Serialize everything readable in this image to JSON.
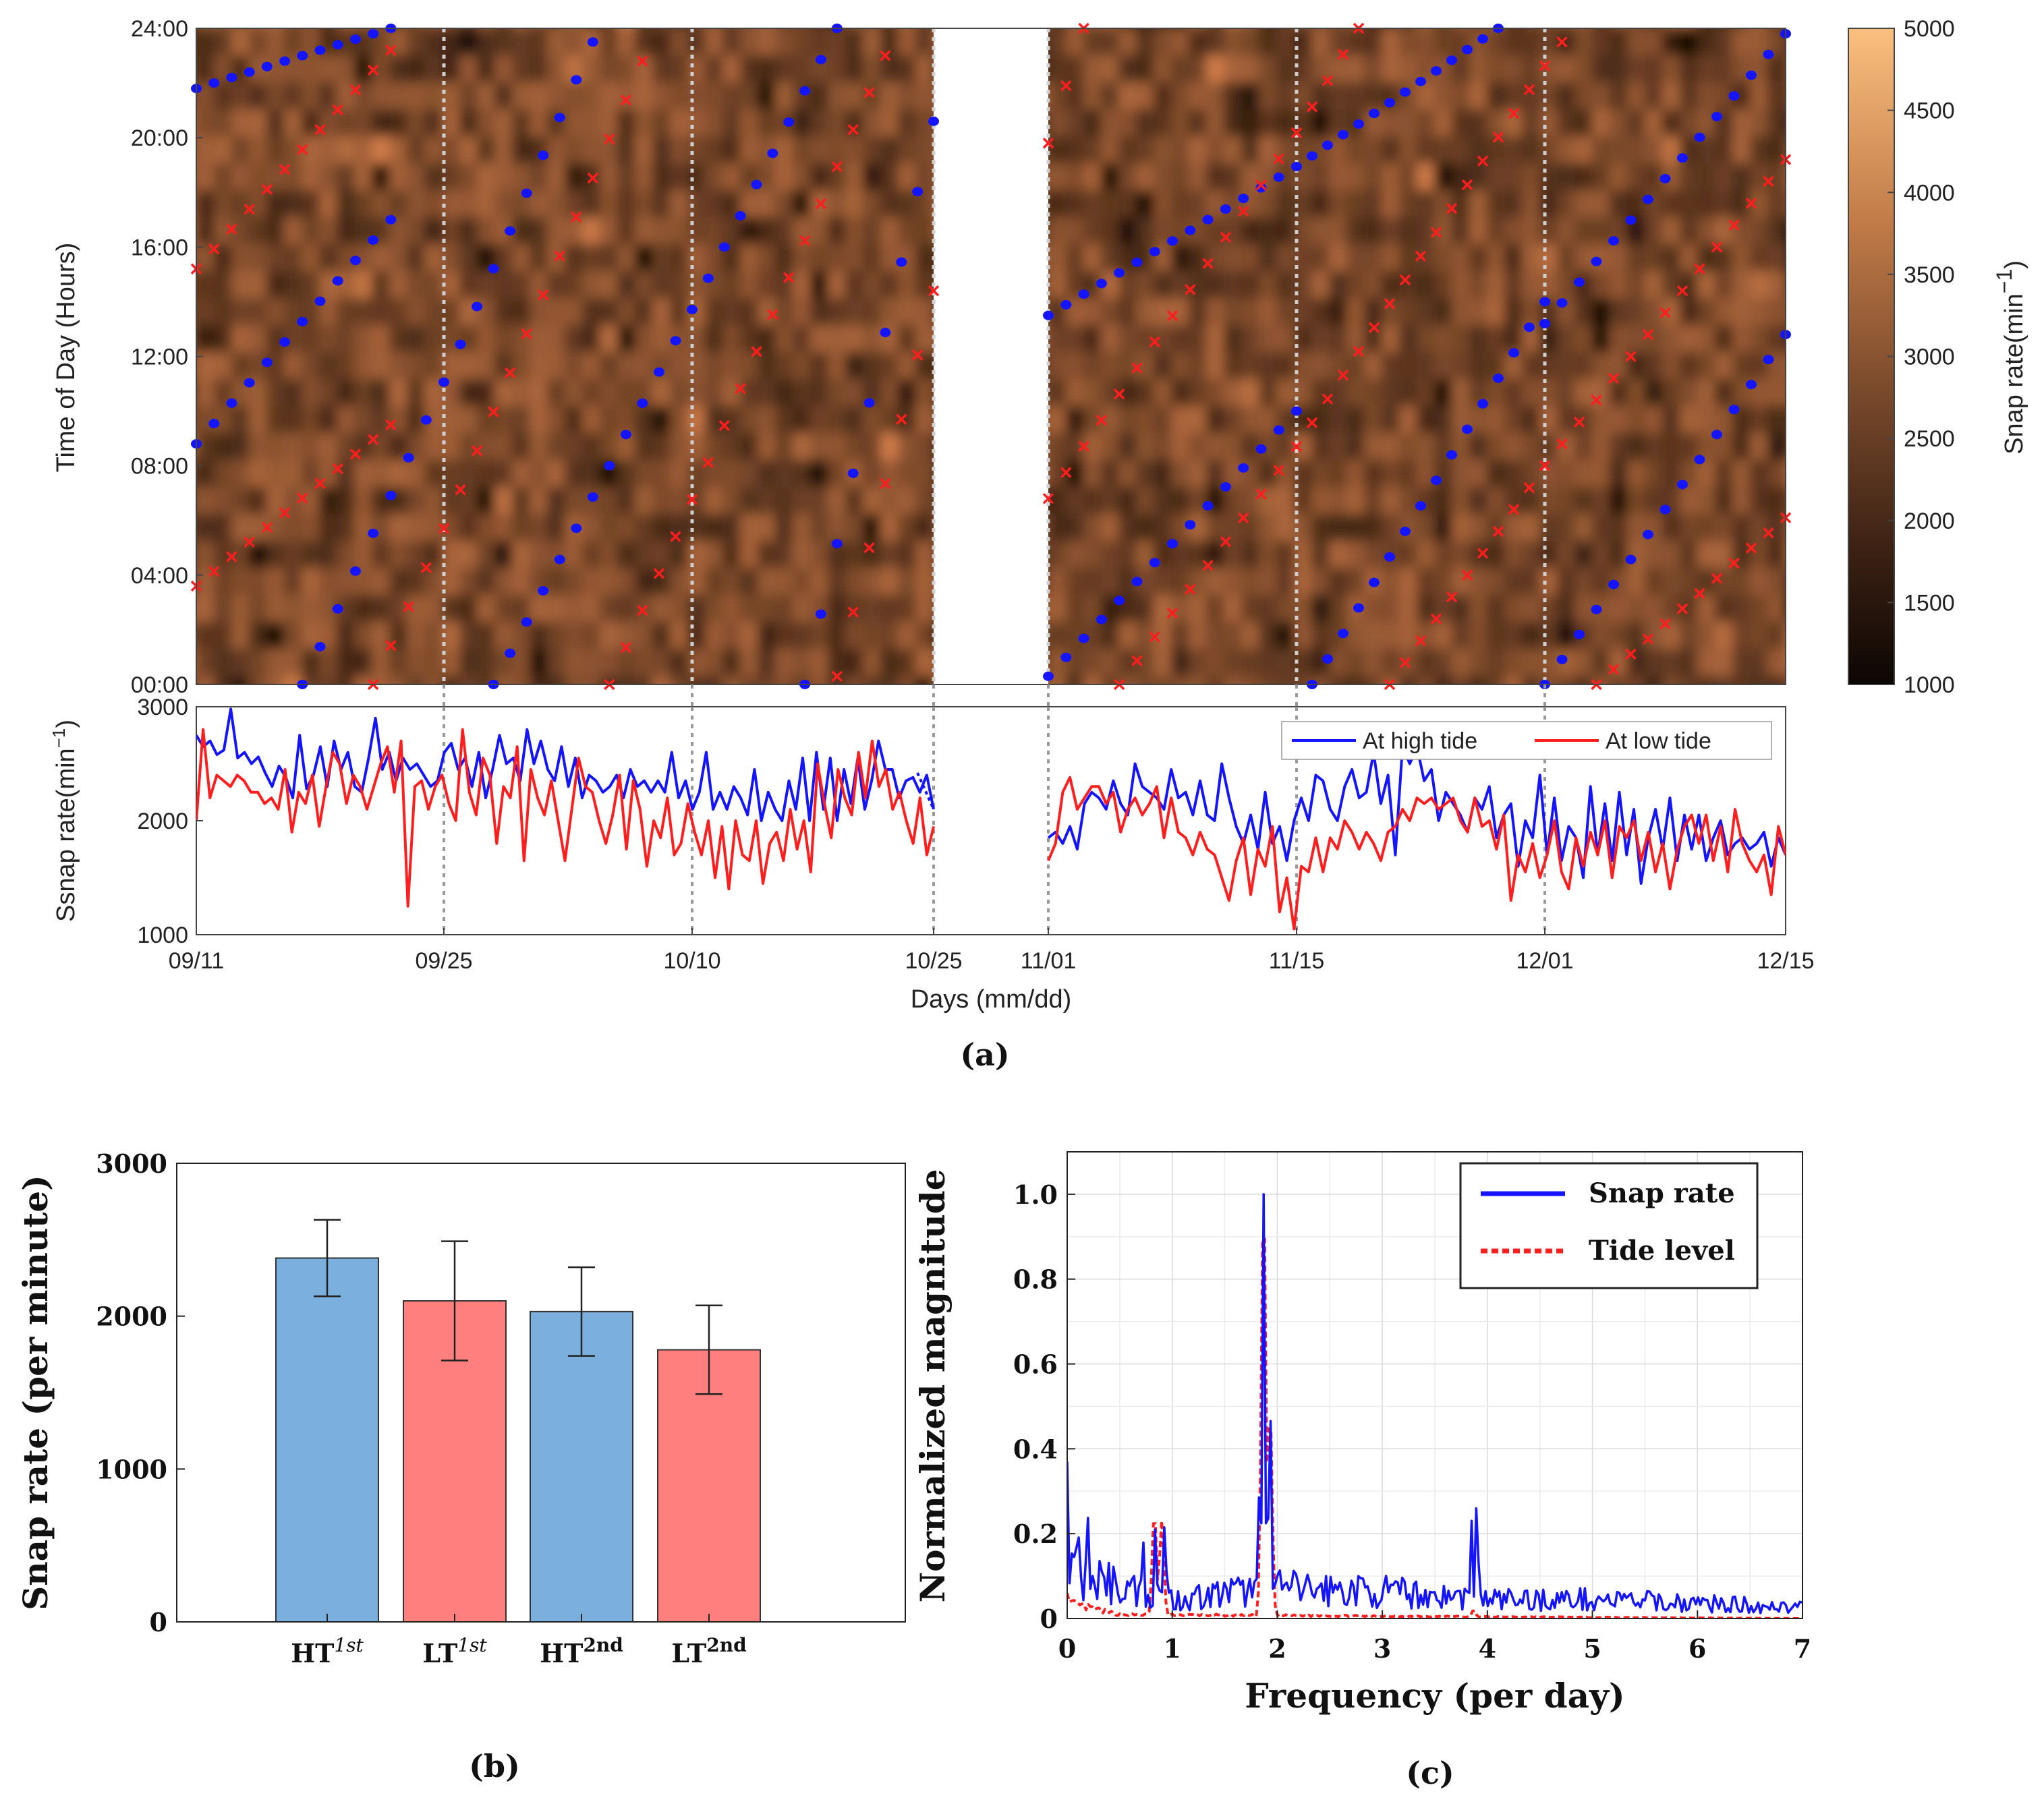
{
  "colors": {
    "high_tide": "#1414ff",
    "low_tide": "#ff1e1e",
    "bar_blue": "#7aafde",
    "bar_red": "#ff7f7f",
    "heat_low": "#140a05",
    "heat_high": "#f9b46e"
  },
  "chart_data": [
    {
      "panel": "(a)",
      "type": "heatmap",
      "days": [
        "09/11",
        "09/25",
        "10/10",
        "10/25",
        "11/01",
        "11/15",
        "12/01",
        "12/15"
      ],
      "ylabel": "Time of Day (Hours)",
      "yticks": [
        "00:00",
        "04:00",
        "08:00",
        "12:00",
        "16:00",
        "20:00",
        "24:00"
      ],
      "ylim": [
        0,
        24
      ],
      "colorbar": {
        "label": "Snap rate(min",
        "label_sup": "−1",
        "label_tail": ")",
        "ticks": [
          "1000",
          "1500",
          "2000",
          "2500",
          "3000",
          "3500",
          "4000",
          "4500",
          "5000"
        ],
        "range": [
          1000,
          5000
        ]
      },
      "gap": [
        "10/25",
        "11/01"
      ],
      "high_tide_segments": [
        {
          "start": "09/11",
          "end": "09/22",
          "t0": 21.8,
          "t1": 24.0
        },
        {
          "start": "09/11",
          "end": "09/22",
          "t0": 8.8,
          "t1": 17.0
        },
        {
          "start": "09/17",
          "end": "10/04",
          "t0": 0.0,
          "t1": 23.5
        },
        {
          "start": "09/28",
          "end": "10/19",
          "t0": 0.0,
          "t1": 24.0
        },
        {
          "start": "10/17",
          "end": "10/25",
          "t0": 0.0,
          "t1": 20.6
        },
        {
          "start": "11/01",
          "end": "11/28",
          "t0": 13.5,
          "t1": 24.0
        },
        {
          "start": "11/01",
          "end": "11/15",
          "t0": 0.3,
          "t1": 10.0
        },
        {
          "start": "11/16",
          "end": "12/01",
          "t0": 0.0,
          "t1": 14.0
        },
        {
          "start": "12/01",
          "end": "12/15",
          "t0": 0.0,
          "t1": 12.8
        },
        {
          "start": "12/01",
          "end": "12/15",
          "t0": 13.2,
          "t1": 23.8
        }
      ],
      "low_tide_segments": [
        {
          "start": "09/11",
          "end": "09/22",
          "t0": 15.2,
          "t1": 23.2
        },
        {
          "start": "09/11",
          "end": "09/22",
          "t0": 3.6,
          "t1": 9.5
        },
        {
          "start": "09/21",
          "end": "10/07",
          "t0": 0.0,
          "t1": 22.8
        },
        {
          "start": "10/05",
          "end": "10/22",
          "t0": 0.0,
          "t1": 23.0
        },
        {
          "start": "10/19",
          "end": "10/25",
          "t0": 0.3,
          "t1": 14.4
        },
        {
          "start": "11/01",
          "end": "11/03",
          "t0": 19.8,
          "t1": 24.0
        },
        {
          "start": "11/01",
          "end": "11/19",
          "t0": 6.8,
          "t1": 24.0
        },
        {
          "start": "11/05",
          "end": "12/02",
          "t0": 0.0,
          "t1": 23.5
        },
        {
          "start": "11/21",
          "end": "12/15",
          "t0": 0.0,
          "t1": 19.2
        },
        {
          "start": "12/04",
          "end": "12/15",
          "t0": 0.0,
          "t1": 6.1
        }
      ]
    },
    {
      "panel": "(a) lower",
      "type": "line",
      "ylabel": "Ssnap rate(min",
      "ylabel_sup": "−1",
      "ylabel_tail": ")",
      "xlabel": "Days (mm/dd)",
      "xticks": [
        "09/11",
        "09/25",
        "10/10",
        "10/25",
        "11/01",
        "11/15",
        "12/01",
        "12/15"
      ],
      "yticks": [
        "1000",
        "2000",
        "3000"
      ],
      "ylim": [
        1000,
        3000
      ],
      "legend": "top-right",
      "series": [
        {
          "name": "At high tide",
          "color": "#1414ff",
          "period1": [
            2750,
            2650,
            2700,
            2580,
            2620,
            2980,
            2550,
            2600,
            2500,
            2560,
            2420,
            2300,
            2480,
            2380,
            2200,
            2750,
            2280,
            2400,
            2650,
            2300,
            2700,
            2450,
            2600,
            2300,
            2250,
            2550,
            2900,
            2450,
            2600,
            2350,
            2550,
            2450,
            2500,
            2400,
            2300,
            2350,
            2600,
            2680,
            2450,
            2550,
            2300,
            2600,
            2200,
            2450,
            2750,
            2500,
            2550,
            2350,
            2800,
            2500,
            2700,
            2450,
            2350,
            2650,
            2300,
            2550,
            2200,
            2400,
            2350,
            2250,
            2300,
            2400,
            2200,
            2450,
            2300,
            2350,
            2250,
            2350,
            2250,
            2600,
            2200,
            2350,
            2100,
            2250,
            2600,
            2100,
            2250,
            2100,
            2300,
            2200,
            2050,
            2450,
            2000,
            2250,
            2100,
            2000,
            2350,
            2100,
            2550,
            2000,
            2600,
            2100,
            2550,
            2000,
            2450,
            2150,
            2550,
            2100,
            2350,
            2700,
            2450,
            2450,
            2200,
            2350,
            2380,
            2250,
            2400,
            2100
          ],
          "period2": [
            1850,
            1900,
            1800,
            1950,
            1750,
            2150,
            2250,
            2200,
            2100,
            2350,
            2150,
            2050,
            2500,
            2300,
            2250,
            2200,
            2100,
            2450,
            2200,
            2250,
            2050,
            2350,
            2050,
            2000,
            2500,
            2200,
            1950,
            1800,
            2050,
            1750,
            2250,
            1800,
            1950,
            1650,
            2000,
            2200,
            2000,
            2400,
            2350,
            2100,
            2000,
            2300,
            2450,
            2200,
            2250,
            2600,
            2150,
            2400,
            1700,
            2650,
            2500,
            2650,
            2350,
            2450,
            2000,
            2250,
            2150,
            2050,
            1900,
            2200,
            2100,
            2300,
            1850,
            2050,
            2150,
            1600,
            2000,
            1850,
            2400,
            1700,
            2200,
            1650,
            1950,
            1850,
            1500,
            2300,
            1700,
            2150,
            1650,
            2250,
            1700,
            2100,
            1450,
            1850,
            2100,
            1750,
            2200,
            1650,
            2050,
            1750,
            2050,
            1650,
            1850,
            2000,
            1700,
            1800,
            1850,
            1750,
            1800,
            1900,
            1600,
            1850,
            1700
          ]
        },
        {
          "name": "At low tide",
          "color": "#ff1e1e",
          "period1": [
            2000,
            2800,
            2200,
            2400,
            2350,
            2300,
            2400,
            2350,
            2250,
            2250,
            2150,
            2200,
            2100,
            2450,
            1900,
            2250,
            2150,
            2400,
            1950,
            2300,
            2600,
            2500,
            2150,
            2400,
            2300,
            2100,
            2300,
            2500,
            2650,
            2250,
            2700,
            1250,
            2300,
            2350,
            2100,
            2300,
            2400,
            2150,
            2000,
            2800,
            2250,
            2050,
            2550,
            2400,
            1800,
            2300,
            2200,
            2650,
            1650,
            2450,
            2200,
            2050,
            2350,
            2000,
            1650,
            2100,
            2550,
            2300,
            2250,
            2000,
            1800,
            2050,
            2400,
            1750,
            2350,
            2100,
            1600,
            2000,
            1850,
            2200,
            1700,
            1800,
            2150,
            1900,
            1700,
            2000,
            1500,
            1950,
            1400,
            2000,
            1700,
            1650,
            2000,
            1450,
            1800,
            1900,
            1650,
            2100,
            1750,
            2000,
            1550,
            2500,
            2150,
            1850,
            2450,
            2200,
            2050,
            2600,
            2200,
            2700,
            2300,
            2450,
            2100,
            2250,
            2000,
            1800,
            2200,
            1700,
            1950
          ],
          "period2": [
            1650,
            1800,
            2250,
            2380,
            2100,
            2200,
            2300,
            2300,
            2150,
            2250,
            1900,
            2100,
            2200,
            2050,
            2150,
            2300,
            1850,
            2200,
            1900,
            1850,
            1700,
            1900,
            1750,
            1700,
            1500,
            1300,
            1650,
            1850,
            1350,
            1750,
            1600,
            1950,
            1200,
            1500,
            1050,
            1600,
            1550,
            1850,
            1550,
            1850,
            1750,
            2000,
            1900,
            1750,
            1900,
            1800,
            1650,
            1900,
            1950,
            2100,
            2000,
            2200,
            2150,
            2200,
            2100,
            2150,
            2200,
            2000,
            1900,
            2200,
            1950,
            2000,
            1750,
            2050,
            1300,
            1700,
            1550,
            1800,
            1500,
            1700,
            2000,
            1550,
            1400,
            1850,
            1600,
            1900,
            1700,
            2000,
            1500,
            1950,
            1850,
            2000,
            1650,
            1900,
            1550,
            1800,
            1400,
            1750,
            1950,
            2050,
            1800,
            2050,
            1650,
            1950,
            1550,
            2100,
            1800,
            1650,
            1550,
            1700,
            1350,
            1950,
            1700
          ]
        }
      ],
      "high_tide_dashed_end": [
        2420,
        2100
      ]
    },
    {
      "panel": "(b)",
      "type": "bar",
      "ylabel": "Snap rate (per minute)",
      "ylim": [
        0,
        3000
      ],
      "yticks": [
        "0",
        "1000",
        "2000",
        "3000"
      ],
      "categories": [
        {
          "base": "HT",
          "sup": "1st",
          "sup_italic": true
        },
        {
          "base": "LT",
          "sup": "1st",
          "sup_italic": true
        },
        {
          "base": "HT",
          "sup": "2nd",
          "sup_italic": false
        },
        {
          "base": "LT",
          "sup": "2nd",
          "sup_italic": false
        }
      ],
      "values": [
        2380,
        2100,
        2030,
        1780
      ],
      "errors": [
        250,
        390,
        290,
        290
      ],
      "bar_colors": [
        "#7aafde",
        "#ff7f7f",
        "#7aafde",
        "#ff7f7f"
      ]
    },
    {
      "panel": "(c)",
      "type": "line",
      "ylabel": "Normalized magnitude",
      "xlabel": "Frequency (per day)",
      "xlim": [
        0,
        7
      ],
      "ylim": [
        0,
        1.1
      ],
      "xticks": [
        "0",
        "1",
        "2",
        "3",
        "4",
        "5",
        "6",
        "7"
      ],
      "yticks": [
        "0",
        "0.2",
        "0.4",
        "0.6",
        "0.8",
        "1.0"
      ],
      "grid": true,
      "legend": "top-right",
      "series": [
        {
          "name": "Snap rate",
          "color": "#1414ff",
          "style": "solid",
          "peaks": [
            [
              0.0,
              0.37
            ],
            [
              0.1,
              0.26
            ],
            [
              0.2,
              0.24
            ],
            [
              0.32,
              0.15
            ],
            [
              0.72,
              0.2
            ],
            [
              0.84,
              0.22
            ],
            [
              0.93,
              0.24
            ],
            [
              1.83,
              0.3
            ],
            [
              1.87,
              1.0
            ],
            [
              1.93,
              0.52
            ],
            [
              3.85,
              0.23
            ],
            [
              3.9,
              0.29
            ]
          ],
          "baseline_levels": [
            [
              0,
              0.12
            ],
            [
              1.0,
              0.05
            ],
            [
              2.0,
              0.08
            ],
            [
              3.0,
              0.07
            ],
            [
              4.0,
              0.05
            ],
            [
              5.0,
              0.05
            ],
            [
              6.0,
              0.04
            ],
            [
              7.0,
              0.03
            ]
          ]
        },
        {
          "name": "Tide level",
          "color": "#ff1e1e",
          "style": "dashed",
          "peaks": [
            [
              0.0,
              0.06
            ],
            [
              0.83,
              0.25
            ],
            [
              0.9,
              0.23
            ],
            [
              1.87,
              1.0
            ],
            [
              1.93,
              0.5
            ],
            [
              3.87,
              0.02
            ]
          ],
          "baseline_levels": [
            [
              0,
              0.04
            ],
            [
              0.5,
              0.01
            ],
            [
              7.0,
              0.0
            ]
          ]
        }
      ]
    }
  ],
  "panel_labels": [
    "(a)",
    "(b)",
    "(c)"
  ]
}
